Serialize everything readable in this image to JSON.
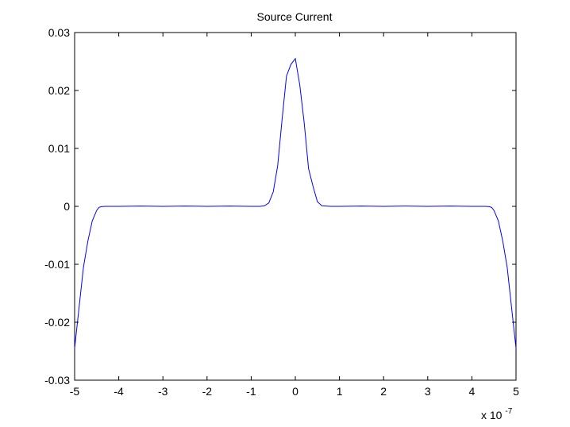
{
  "chart_data": {
    "type": "line",
    "title": "Source Current",
    "xlabel": "",
    "ylabel": "",
    "x_exponent_label": "x 10",
    "x_exponent_power": "-7",
    "xlim": [
      -5,
      5
    ],
    "ylim": [
      -0.03,
      0.03
    ],
    "x_ticks": [
      -5,
      -4,
      -3,
      -2,
      -1,
      0,
      1,
      2,
      3,
      4,
      5
    ],
    "x_tick_labels": [
      "-5",
      "-4",
      "-3",
      "-2",
      "-1",
      "0",
      "1",
      "2",
      "3",
      "4",
      "5"
    ],
    "y_ticks": [
      -0.03,
      -0.02,
      -0.01,
      0,
      0.01,
      0.02,
      0.03
    ],
    "y_tick_labels": [
      "-0.03",
      "-0.02",
      "-0.01",
      "0",
      "0.01",
      "0.02",
      "0.03"
    ],
    "grid": false,
    "legend": "none",
    "box": true,
    "series": [
      {
        "color": "#0000ff",
        "x": [
          -5.0,
          -4.9,
          -4.8,
          -4.7,
          -4.6,
          -4.5,
          -4.45,
          -4.4,
          -4.3,
          -4.0,
          -3.5,
          -3.0,
          -2.5,
          -2.0,
          -1.5,
          -1.0,
          -0.8,
          -0.7,
          -0.6,
          -0.5,
          -0.4,
          -0.3,
          -0.2,
          -0.1,
          0.0,
          0.1,
          0.2,
          0.3,
          0.4,
          0.5,
          0.6,
          0.8,
          1.0,
          1.5,
          2.0,
          2.5,
          3.0,
          3.5,
          4.0,
          4.3,
          4.4,
          4.45,
          4.5,
          4.6,
          4.7,
          4.8,
          4.9,
          5.0
        ],
        "y": [
          -0.0245,
          -0.0175,
          -0.0105,
          -0.006,
          -0.0025,
          -0.0007,
          -0.0002,
          -5e-05,
          0.0,
          0.0,
          5e-05,
          0.0,
          5e-05,
          0.0,
          5e-05,
          0.0,
          0.0,
          0.0001,
          0.0006,
          0.0025,
          0.007,
          0.015,
          0.0225,
          0.0245,
          0.0255,
          0.021,
          0.0145,
          0.0065,
          0.0035,
          0.0008,
          0.0001,
          0.0,
          0.0,
          5e-05,
          0.0,
          5e-05,
          0.0,
          5e-05,
          0.0,
          0.0,
          -5e-05,
          -0.0002,
          -0.0007,
          -0.0025,
          -0.006,
          -0.0105,
          -0.0175,
          -0.0245
        ]
      }
    ]
  }
}
